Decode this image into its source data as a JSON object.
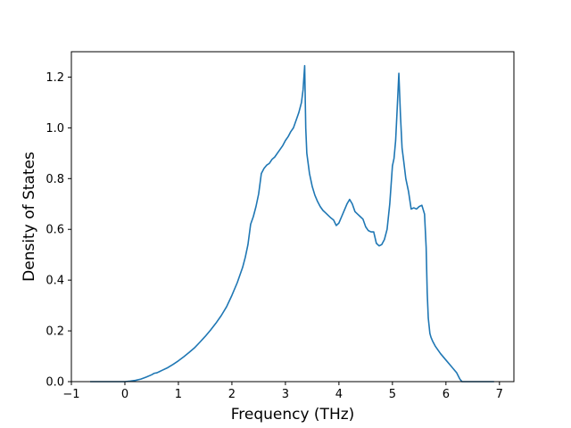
{
  "chart_data": {
    "type": "line",
    "title": "",
    "xlabel": "Frequency (THz)",
    "ylabel": "Density of States",
    "xlim": [
      -1,
      7.27
    ],
    "ylim": [
      0,
      1.3
    ],
    "xticks": [
      -1,
      0,
      1,
      2,
      3,
      4,
      5,
      6,
      7
    ],
    "yticks": [
      0.0,
      0.2,
      0.4,
      0.6,
      0.8,
      1.0,
      1.2
    ],
    "xtick_labels": [
      "−1",
      "0",
      "1",
      "2",
      "3",
      "4",
      "5",
      "6",
      "7"
    ],
    "ytick_labels": [
      "0.0",
      "0.2",
      "0.4",
      "0.6",
      "0.8",
      "1.0",
      "1.2"
    ],
    "grid": false,
    "legend": "none",
    "colors": {
      "line": "#1f77b4",
      "axes": "#000000",
      "background": "#ffffff"
    },
    "series": [
      {
        "x": [
          -0.65,
          -0.4,
          -0.2,
          0.0,
          0.1,
          0.2,
          0.3,
          0.4,
          0.5,
          0.55,
          0.6,
          0.65,
          0.7,
          0.8,
          0.9,
          1.0,
          1.1,
          1.2,
          1.3,
          1.4,
          1.5,
          1.6,
          1.7,
          1.8,
          1.9,
          2.0,
          2.1,
          2.2,
          2.25,
          2.3,
          2.35,
          2.4,
          2.45,
          2.5,
          2.55,
          2.6,
          2.65,
          2.7,
          2.75,
          2.8,
          2.85,
          2.9,
          2.95,
          3.0,
          3.05,
          3.1,
          3.15,
          3.2,
          3.25,
          3.3,
          3.33,
          3.36,
          3.38,
          3.4,
          3.45,
          3.5,
          3.55,
          3.6,
          3.65,
          3.7,
          3.75,
          3.8,
          3.85,
          3.9,
          3.95,
          4.0,
          4.05,
          4.1,
          4.15,
          4.2,
          4.25,
          4.3,
          4.35,
          4.4,
          4.45,
          4.5,
          4.55,
          4.6,
          4.65,
          4.7,
          4.75,
          4.8,
          4.85,
          4.9,
          4.95,
          5.0,
          5.03,
          5.06,
          5.09,
          5.12,
          5.15,
          5.18,
          5.21,
          5.25,
          5.3,
          5.35,
          5.4,
          5.45,
          5.5,
          5.55,
          5.6,
          5.63,
          5.65,
          5.67,
          5.7,
          5.72,
          5.75,
          5.8,
          5.9,
          6.0,
          6.1,
          6.2,
          6.26,
          6.3,
          6.5,
          6.7,
          6.9
        ],
        "y": [
          0.0,
          0.0,
          0.0,
          0.0,
          0.002,
          0.005,
          0.01,
          0.018,
          0.027,
          0.033,
          0.035,
          0.04,
          0.045,
          0.055,
          0.068,
          0.082,
          0.098,
          0.115,
          0.133,
          0.155,
          0.178,
          0.203,
          0.23,
          0.26,
          0.295,
          0.34,
          0.39,
          0.45,
          0.49,
          0.54,
          0.62,
          0.65,
          0.69,
          0.74,
          0.82,
          0.84,
          0.853,
          0.86,
          0.876,
          0.885,
          0.9,
          0.915,
          0.93,
          0.95,
          0.965,
          0.985,
          1.0,
          1.03,
          1.06,
          1.1,
          1.15,
          1.245,
          1.0,
          0.9,
          0.82,
          0.77,
          0.735,
          0.71,
          0.69,
          0.675,
          0.665,
          0.655,
          0.645,
          0.637,
          0.615,
          0.625,
          0.65,
          0.675,
          0.7,
          0.718,
          0.7,
          0.67,
          0.66,
          0.65,
          0.64,
          0.61,
          0.595,
          0.59,
          0.59,
          0.545,
          0.535,
          0.54,
          0.56,
          0.6,
          0.7,
          0.85,
          0.88,
          0.95,
          1.08,
          1.215,
          1.05,
          0.92,
          0.87,
          0.8,
          0.75,
          0.68,
          0.685,
          0.68,
          0.69,
          0.695,
          0.66,
          0.53,
          0.35,
          0.25,
          0.19,
          0.175,
          0.16,
          0.14,
          0.11,
          0.085,
          0.06,
          0.035,
          0.01,
          0.0,
          0.0,
          0.0,
          0.0
        ]
      }
    ]
  }
}
